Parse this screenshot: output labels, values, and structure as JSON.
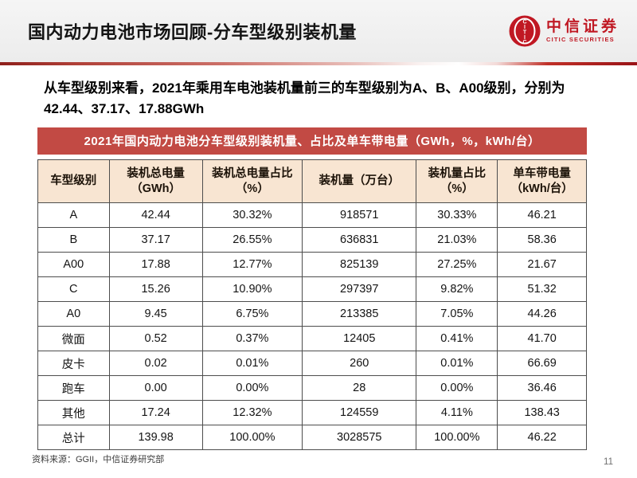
{
  "slide": {
    "title": "国内动力电池市场回顾-分车型级别装机量",
    "page_number": "11",
    "source_note": "资料来源：GGII，中信证券研究部"
  },
  "logo": {
    "name_cn": "中信证券",
    "name_en": "CITIC SECURITIES",
    "color": "#c01823"
  },
  "body": {
    "paragraph": "从车型级别来看，2021年乘用车电池装机量前三的车型级别为A、B、A00级别，分别为42.44、37.17、17.88GWh"
  },
  "table": {
    "caption": "2021年国内动力电池分车型级别装机量、占比及单车带电量（GWh，%，kWh/台）",
    "columns": [
      "车型级别",
      "装机总电量\n（GWh）",
      "装机总电量占比\n（%）",
      "装机量（万台）",
      "装机量占比\n（%）",
      "单车带电量\n（kWh/台）"
    ],
    "rows": [
      [
        "A",
        "42.44",
        "30.32%",
        "918571",
        "30.33%",
        "46.21"
      ],
      [
        "B",
        "37.17",
        "26.55%",
        "636831",
        "21.03%",
        "58.36"
      ],
      [
        "A00",
        "17.88",
        "12.77%",
        "825139",
        "27.25%",
        "21.67"
      ],
      [
        "C",
        "15.26",
        "10.90%",
        "297397",
        "9.82%",
        "51.32"
      ],
      [
        "A0",
        "9.45",
        "6.75%",
        "213385",
        "7.05%",
        "44.26"
      ],
      [
        "微面",
        "0.52",
        "0.37%",
        "12405",
        "0.41%",
        "41.70"
      ],
      [
        "皮卡",
        "0.02",
        "0.01%",
        "260",
        "0.01%",
        "66.69"
      ],
      [
        "跑车",
        "0.00",
        "0.00%",
        "28",
        "0.00%",
        "36.46"
      ],
      [
        "其他",
        "17.24",
        "12.32%",
        "124559",
        "4.11%",
        "138.43"
      ],
      [
        "总计",
        "139.98",
        "100.00%",
        "3028575",
        "100.00%",
        "46.22"
      ]
    ]
  },
  "colors": {
    "caption_red": "#c24a44",
    "header_peach": "#f8e5d2",
    "rule_red_dark": "#991317",
    "border": "#4d4d4d"
  }
}
